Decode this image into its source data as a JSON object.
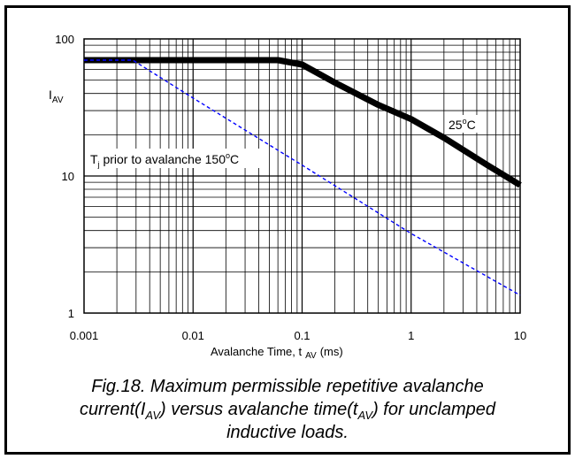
{
  "chart_data": {
    "type": "line",
    "title": "",
    "ylabel": "I",
    "ylabel_sub": "AV",
    "xlabel_main": "Avalanche Time, t",
    "xlabel_sub": "AV",
    "xlabel_unit": "(ms)",
    "xscale": "log",
    "yscale": "log",
    "xlim": [
      0.001,
      10
    ],
    "ylim": [
      1,
      100
    ],
    "grid": true,
    "x_tick_labels": [
      "0.001",
      "0.01",
      "0.1",
      "1",
      "10"
    ],
    "y_tick_labels": [
      "1",
      "10",
      "100"
    ],
    "series": [
      {
        "name": "25°C",
        "style": "solid-thick",
        "color": "#000000",
        "points": [
          [
            0.001,
            70
          ],
          [
            0.06,
            70
          ],
          [
            0.1,
            65
          ],
          [
            0.2,
            48
          ],
          [
            0.5,
            33
          ],
          [
            1,
            26
          ],
          [
            2,
            19
          ],
          [
            5,
            12
          ],
          [
            10,
            8.6
          ]
        ]
      },
      {
        "name": "150°C",
        "style": "dashed",
        "color": "#0000ff",
        "points": [
          [
            0.001,
            70
          ],
          [
            0.0028,
            70
          ],
          [
            0.01,
            37
          ],
          [
            0.1,
            12
          ],
          [
            1,
            3.8
          ],
          [
            10,
            1.35
          ]
        ]
      }
    ],
    "annotations": {
      "a25_main": "25",
      "a25_sup": "o",
      "a25_unit": "C",
      "a150_T": "T",
      "a150_j": "j",
      "a150_main": " prior to avalanche 150",
      "a150_sup": "o",
      "a150_unit": "C"
    }
  },
  "caption": {
    "l1": "Fig.18.   Maximum permissible repetitive avalanche",
    "l2a": "current(I",
    "l2b": "AV",
    "l2c": ") versus avalanche time(t",
    "l2d": "AV",
    "l2e": ") for unclamped",
    "l3": "inductive loads."
  }
}
